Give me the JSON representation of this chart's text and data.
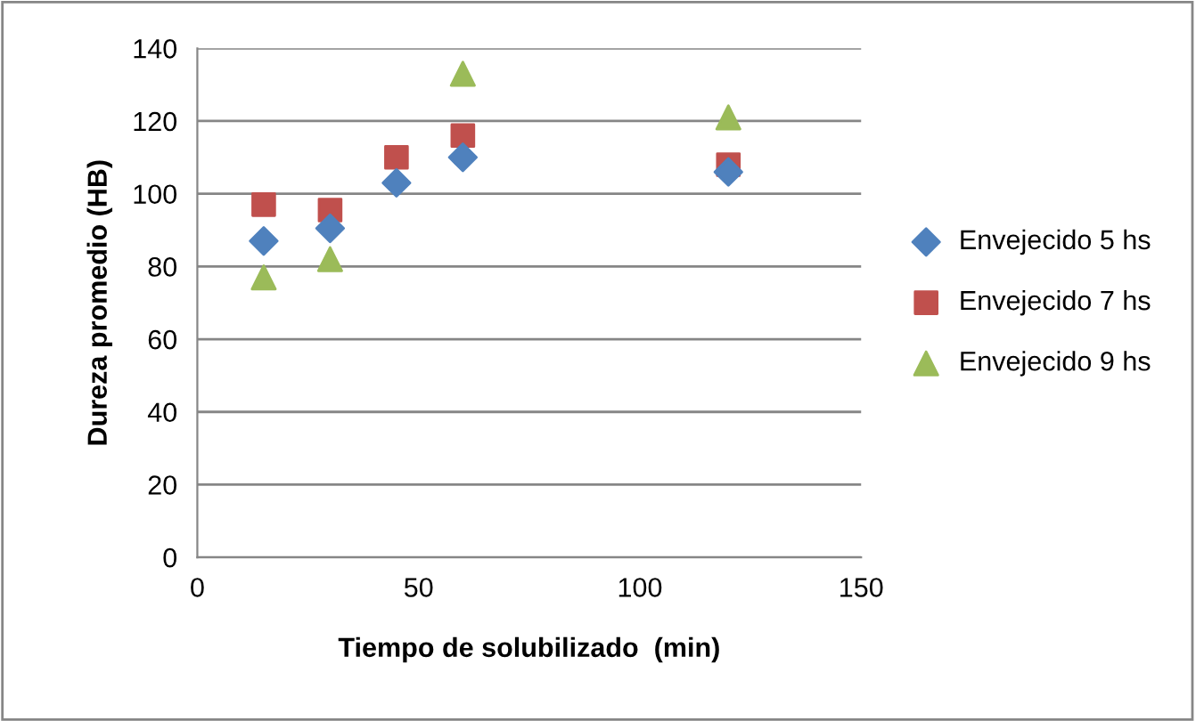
{
  "chart_data": {
    "type": "scatter",
    "xlabel": "Tiempo de solubilizado  (min)",
    "ylabel": "Dureza promedio (HB)",
    "x": [
      15,
      30,
      45,
      60,
      120
    ],
    "series": [
      {
        "name": "Envejecido 5 hs",
        "color": "#4f81bd",
        "marker": "diamond",
        "values": [
          87,
          90.5,
          103,
          110,
          106
        ]
      },
      {
        "name": "Envejecido 7 hs",
        "color": "#c0504d",
        "marker": "square",
        "values": [
          97,
          95.5,
          110,
          116,
          108
        ]
      },
      {
        "name": "Envejecido 9 hs",
        "color": "#9bbb59",
        "marker": "triangle",
        "values": [
          77,
          82,
          null,
          133,
          121
        ]
      }
    ],
    "xlim": [
      0,
      150
    ],
    "xticks": [
      0,
      50,
      100,
      150
    ],
    "ylim": [
      0,
      140
    ],
    "yticks": [
      0,
      20,
      40,
      60,
      80,
      100,
      120,
      140
    ],
    "grid": "y",
    "legend": "right"
  }
}
